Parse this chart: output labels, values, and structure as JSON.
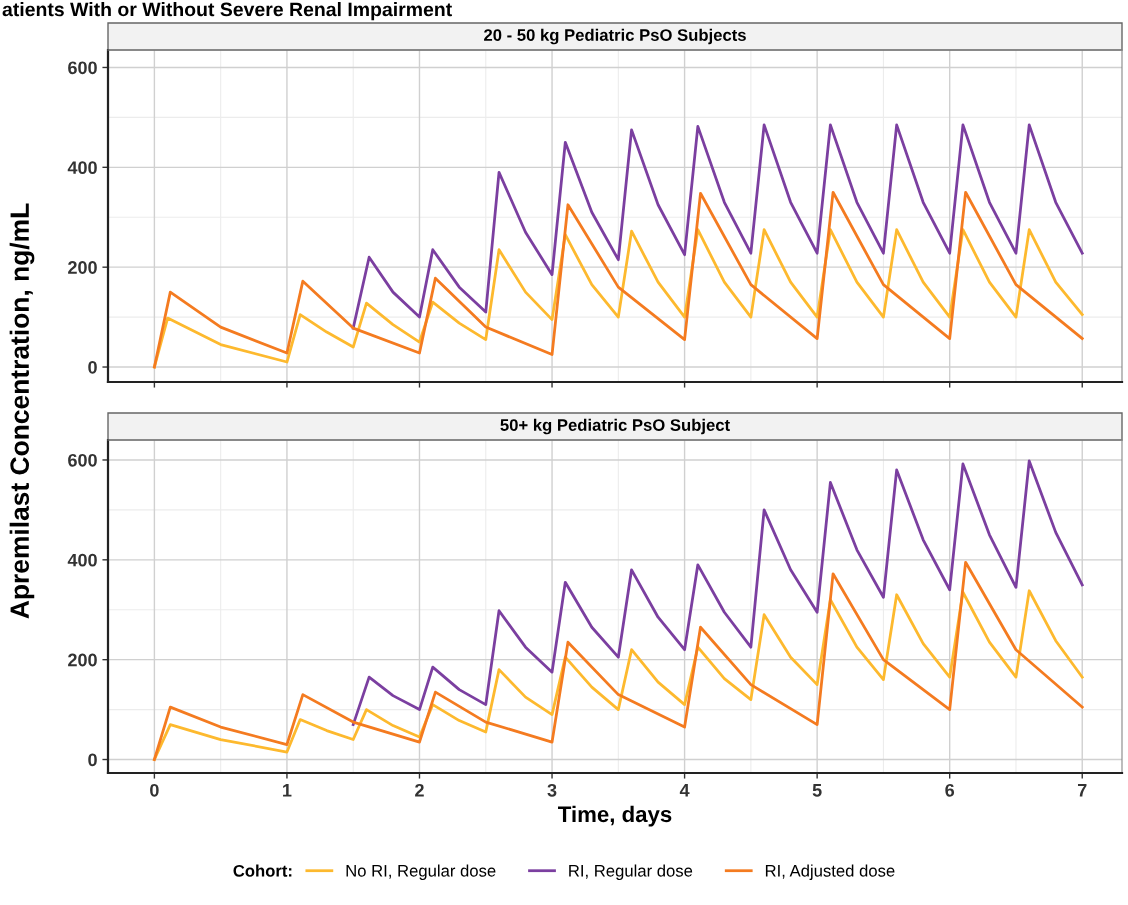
{
  "chart_data": [
    {
      "type": "line",
      "title": "20 - 50 kg Pediatric PsO Subjects",
      "ylabel": "Apremilast Concentration, ng/mL",
      "annotations": [
        "atients With or Without Severe Renal Impairment"
      ],
      "xlim": [
        -0.35,
        7.3
      ],
      "xticks": [
        0,
        1,
        2,
        3,
        4,
        5,
        6,
        7
      ],
      "ylim": [
        -30,
        635
      ],
      "yticks": [
        0,
        200,
        400,
        600
      ],
      "tick_labels": "y",
      "grid": true,
      "legend": false,
      "series": [
        {
          "color": "#fdb92e",
          "x": [
            0,
            0.1,
            0.5,
            1,
            1.1,
            1.3,
            1.5,
            1.6,
            1.8,
            2,
            2.1,
            2.3,
            2.5,
            2.6,
            2.8,
            3,
            3.1,
            3.3,
            3.5,
            3.6,
            3.8,
            4,
            4.1,
            4.3,
            4.5,
            4.6,
            4.8,
            5,
            5.1,
            5.3,
            5.5,
            5.6,
            5.8,
            6,
            6.1,
            6.3,
            6.5,
            6.6,
            6.8,
            7
          ],
          "values": [
            0,
            98,
            45,
            10,
            105,
            70,
            40,
            128,
            85,
            50,
            130,
            88,
            55,
            235,
            150,
            95,
            265,
            165,
            100,
            272,
            170,
            100,
            275,
            170,
            100,
            275,
            170,
            100,
            275,
            170,
            100,
            275,
            170,
            100,
            275,
            170,
            100,
            275,
            170,
            105
          ]
        },
        {
          "color": "#7b3fa0",
          "x": [
            1.5,
            1.62,
            1.8,
            2,
            2.1,
            2.3,
            2.5,
            2.6,
            2.8,
            3,
            3.1,
            3.3,
            3.5,
            3.6,
            3.8,
            4,
            4.1,
            4.3,
            4.5,
            4.6,
            4.8,
            5,
            5.1,
            5.3,
            5.5,
            5.6,
            5.8,
            6,
            6.1,
            6.3,
            6.5,
            6.6,
            6.8,
            7
          ],
          "values": [
            78,
            220,
            150,
            100,
            235,
            160,
            110,
            390,
            270,
            185,
            450,
            310,
            215,
            475,
            325,
            225,
            482,
            330,
            228,
            485,
            330,
            228,
            485,
            330,
            228,
            485,
            330,
            228,
            485,
            330,
            228,
            485,
            330,
            228
          ]
        },
        {
          "color": "#f47b20",
          "x": [
            0,
            0.12,
            0.5,
            1,
            1.12,
            1.5,
            2,
            2.12,
            2.5,
            3,
            3.12,
            3.5,
            4,
            4.12,
            4.5,
            5,
            5.12,
            5.5,
            6,
            6.12,
            6.5,
            7
          ],
          "values": [
            0,
            150,
            80,
            28,
            172,
            78,
            28,
            178,
            80,
            25,
            325,
            160,
            55,
            348,
            165,
            57,
            350,
            165,
            57,
            350,
            165,
            57
          ]
        }
      ]
    },
    {
      "type": "line",
      "title": "50+ kg Pediatric PsO Subject",
      "xlabel": "Time, days",
      "legend_title": "Cohort:",
      "xlim": [
        -0.35,
        7.3
      ],
      "xticks": [
        0,
        1,
        2,
        3,
        4,
        5,
        6,
        7
      ],
      "ylim": [
        -27,
        640
      ],
      "yticks": [
        0,
        200,
        400,
        600
      ],
      "grid": true,
      "legend": "bottom",
      "series": [
        {
          "name": "No RI, Regular dose",
          "color": "#fdb92e",
          "x": [
            0,
            0.12,
            0.5,
            1,
            1.1,
            1.3,
            1.5,
            1.6,
            1.8,
            2,
            2.1,
            2.3,
            2.5,
            2.6,
            2.8,
            3,
            3.1,
            3.3,
            3.5,
            3.6,
            3.8,
            4,
            4.1,
            4.3,
            4.5,
            4.6,
            4.8,
            5,
            5.1,
            5.3,
            5.5,
            5.6,
            5.8,
            6,
            6.1,
            6.3,
            6.5,
            6.6,
            6.8,
            7
          ],
          "values": [
            0,
            70,
            40,
            15,
            80,
            58,
            40,
            100,
            68,
            45,
            110,
            78,
            55,
            180,
            125,
            90,
            205,
            145,
            100,
            220,
            155,
            110,
            225,
            162,
            120,
            290,
            205,
            150,
            320,
            225,
            160,
            330,
            232,
            165,
            335,
            235,
            165,
            338,
            238,
            165
          ]
        },
        {
          "name": "RI, Regular dose",
          "color": "#7b3fa0",
          "x": [
            1.5,
            1.62,
            1.8,
            2,
            2.1,
            2.3,
            2.5,
            2.6,
            2.8,
            3,
            3.1,
            3.3,
            3.5,
            3.6,
            3.8,
            4,
            4.1,
            4.3,
            4.5,
            4.6,
            4.8,
            5,
            5.1,
            5.3,
            5.5,
            5.6,
            5.8,
            6,
            6.1,
            6.3,
            6.5,
            6.6,
            6.8,
            7
          ],
          "values": [
            70,
            165,
            128,
            100,
            185,
            140,
            110,
            298,
            225,
            175,
            355,
            265,
            205,
            380,
            285,
            220,
            390,
            295,
            225,
            500,
            380,
            295,
            555,
            420,
            325,
            580,
            440,
            340,
            592,
            450,
            345,
            598,
            455,
            350
          ]
        },
        {
          "name": "RI, Adjusted dose",
          "color": "#f47b20",
          "x": [
            0,
            0.12,
            0.5,
            1,
            1.12,
            1.5,
            2,
            2.12,
            2.5,
            3,
            3.12,
            3.5,
            4,
            4.12,
            4.5,
            5,
            5.12,
            5.5,
            6,
            6.12,
            6.5,
            7
          ],
          "values": [
            0,
            105,
            65,
            30,
            130,
            75,
            35,
            135,
            75,
            35,
            235,
            130,
            65,
            265,
            150,
            70,
            372,
            200,
            100,
            395,
            220,
            105
          ]
        }
      ]
    }
  ]
}
